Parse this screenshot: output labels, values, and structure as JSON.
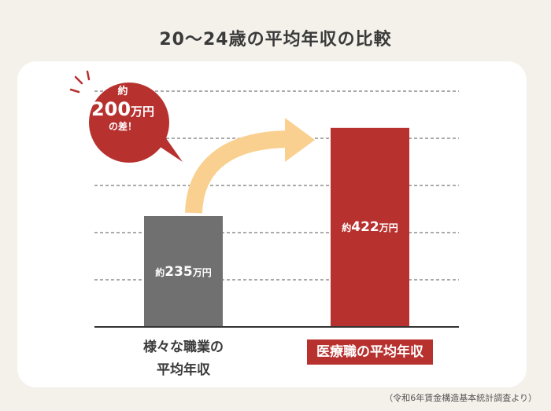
{
  "title": "20〜24歳の平均年収の比較",
  "callout": {
    "line1": "約",
    "amount": "200",
    "unit": "万円",
    "line3": "の差！"
  },
  "source": "（令和6年賃金構造基本統計調査より）",
  "colors": {
    "bar_general": "#707070",
    "bar_medical": "#b7312f",
    "arrow": "#f9d08f",
    "bubble": "#b7312f"
  },
  "chart_data": {
    "type": "bar",
    "categories": [
      "様々な職業の\n平均年収",
      "医療職の平均年収"
    ],
    "values": [
      235,
      422
    ],
    "value_labels": [
      {
        "prefix": "約",
        "number": "235",
        "unit": "万円"
      },
      {
        "prefix": "約",
        "number": "422",
        "unit": "万円"
      }
    ],
    "title": "20〜24歳の平均年収の比較",
    "xlabel": "",
    "ylabel": "",
    "ylim": [
      0,
      500
    ],
    "grid": true,
    "grid_style": "dashed"
  }
}
